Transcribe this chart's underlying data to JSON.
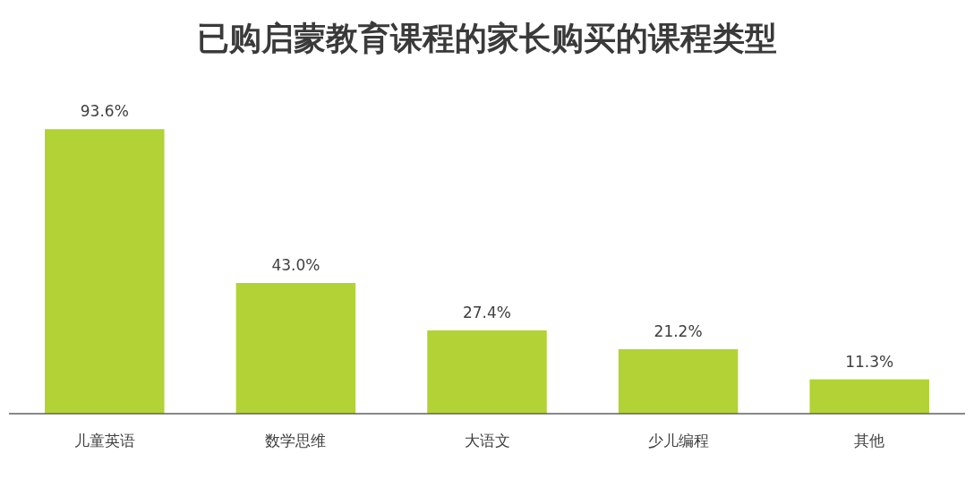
{
  "chart_data": {
    "type": "bar",
    "title": "已购启蒙教育课程的家长购买的课程类型",
    "categories": [
      "儿童英语",
      "数学思维",
      "大语文",
      "少儿编程",
      "其他"
    ],
    "values": [
      93.6,
      43.0,
      27.4,
      21.2,
      11.3
    ],
    "value_labels": [
      "93.6%",
      "43.0%",
      "27.4%",
      "21.2%",
      "11.3%"
    ],
    "color": "#b2d235"
  }
}
